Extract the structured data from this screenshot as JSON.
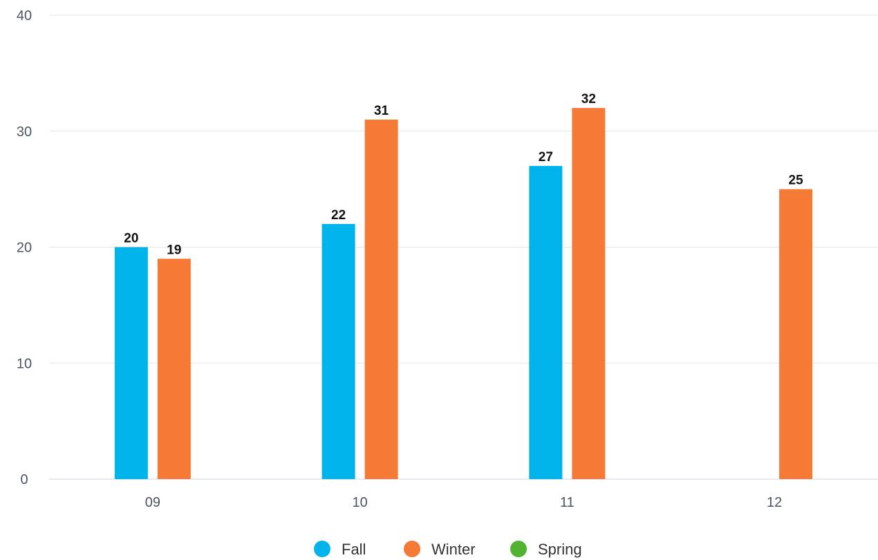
{
  "chart_data": {
    "type": "bar",
    "categories": [
      "09",
      "10",
      "11",
      "12"
    ],
    "series": [
      {
        "name": "Fall",
        "color": "#00b3ea",
        "values": [
          20,
          22,
          27,
          null
        ]
      },
      {
        "name": "Winter",
        "color": "#f47a35",
        "values": [
          19,
          31,
          32,
          25
        ]
      },
      {
        "name": "Spring",
        "color": "#50b432",
        "values": [
          null,
          null,
          null,
          null
        ]
      }
    ],
    "yticks": [
      0,
      10,
      20,
      30,
      40
    ],
    "ylim": [
      0,
      40
    ],
    "grid": true,
    "legend_position": "bottom-center",
    "title": "",
    "xlabel": "",
    "ylabel": ""
  }
}
